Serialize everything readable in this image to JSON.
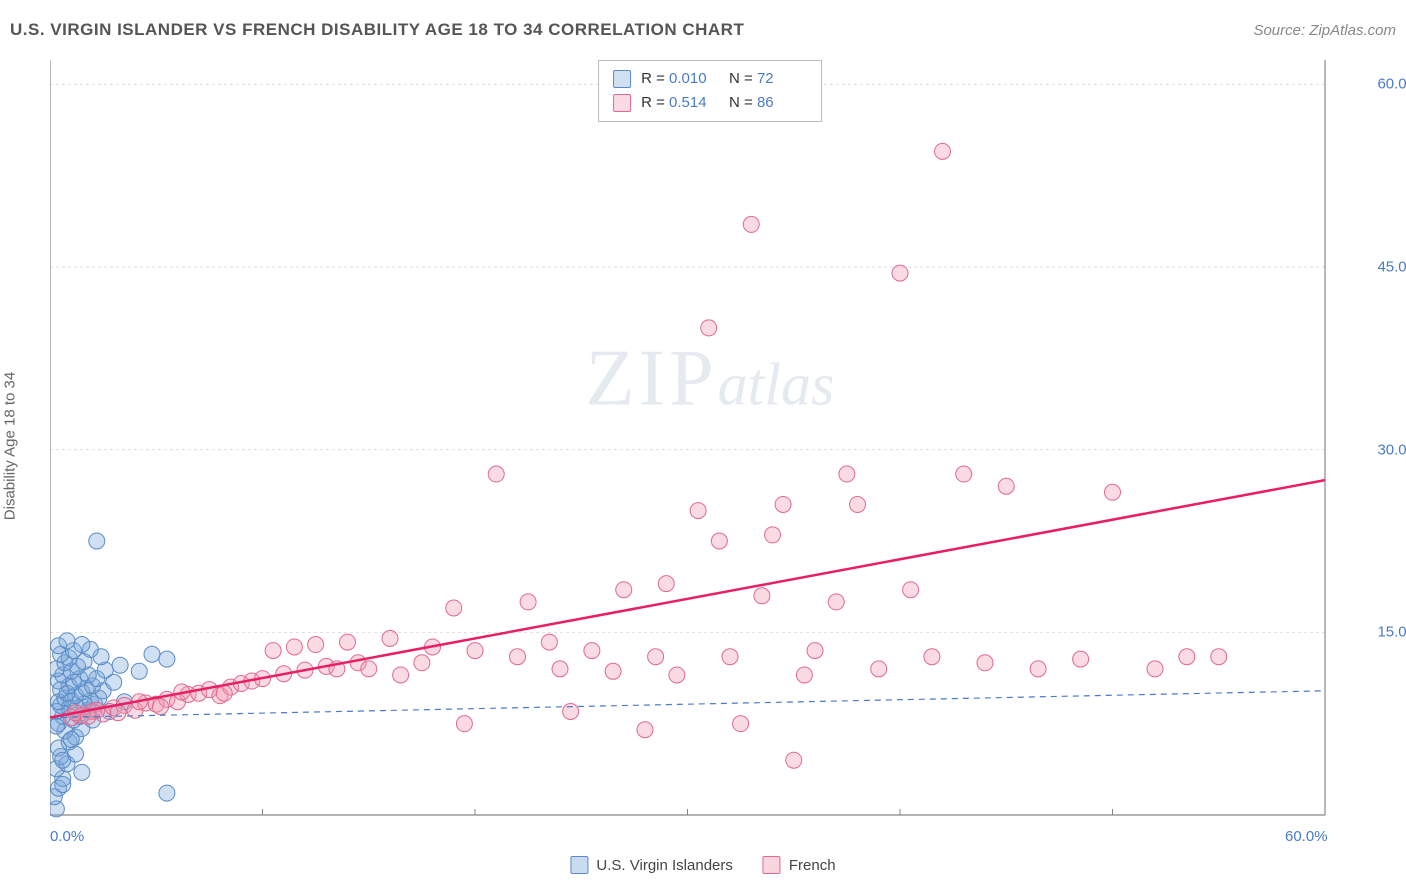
{
  "title": "U.S. VIRGIN ISLANDER VS FRENCH DISABILITY AGE 18 TO 34 CORRELATION CHART",
  "source": "Source: ZipAtlas.com",
  "ylabel": "Disability Age 18 to 34",
  "watermark": {
    "zip": "ZIP",
    "atlas": "atlas"
  },
  "chart": {
    "type": "scatter",
    "background_color": "#ffffff",
    "grid_color": "#dddddd",
    "axis_color": "#888888",
    "xlim": [
      0,
      60
    ],
    "ylim": [
      0,
      62
    ],
    "xticks": [
      0,
      60
    ],
    "xtick_labels": [
      "0.0%",
      "60.0%"
    ],
    "yticks": [
      15,
      30,
      45,
      60
    ],
    "ytick_labels": [
      "15.0%",
      "30.0%",
      "45.0%",
      "60.0%"
    ],
    "xtick_minor": [
      10,
      20,
      30,
      40,
      50
    ],
    "series": [
      {
        "name": "U.S. Virgin Islanders",
        "color_fill": "rgba(120,165,220,0.35)",
        "color_stroke": "#5a8bc4",
        "marker_radius": 8,
        "trend": {
          "style": "dashed",
          "color": "#4a7bc8",
          "width": 1.2,
          "y_start": 8.0,
          "y_end": 10.2
        },
        "points": [
          [
            0.3,
            0.5
          ],
          [
            0.2,
            1.5
          ],
          [
            0.4,
            2.2
          ],
          [
            0.6,
            3.0
          ],
          [
            0.3,
            3.8
          ],
          [
            0.8,
            4.2
          ],
          [
            0.5,
            4.8
          ],
          [
            0.4,
            5.5
          ],
          [
            0.9,
            6.0
          ],
          [
            1.2,
            6.4
          ],
          [
            0.7,
            6.9
          ],
          [
            1.5,
            7.1
          ],
          [
            0.4,
            7.5
          ],
          [
            1.1,
            7.8
          ],
          [
            0.6,
            8.1
          ],
          [
            1.4,
            8.1
          ],
          [
            0.3,
            8.5
          ],
          [
            1.8,
            8.6
          ],
          [
            0.9,
            8.8
          ],
          [
            1.3,
            8.8
          ],
          [
            0.5,
            9.0
          ],
          [
            1.6,
            9.1
          ],
          [
            2.1,
            9.1
          ],
          [
            0.4,
            9.3
          ],
          [
            1.0,
            9.4
          ],
          [
            1.9,
            9.4
          ],
          [
            0.7,
            9.6
          ],
          [
            2.3,
            9.6
          ],
          [
            0.3,
            7.3
          ],
          [
            1.2,
            9.8
          ],
          [
            0.8,
            10.0
          ],
          [
            1.5,
            10.1
          ],
          [
            2.5,
            10.2
          ],
          [
            0.5,
            10.3
          ],
          [
            1.7,
            10.4
          ],
          [
            0.9,
            10.6
          ],
          [
            2.0,
            10.6
          ],
          [
            1.1,
            10.9
          ],
          [
            3.0,
            10.9
          ],
          [
            0.4,
            11.0
          ],
          [
            1.4,
            11.2
          ],
          [
            2.2,
            11.2
          ],
          [
            0.6,
            11.5
          ],
          [
            1.8,
            11.5
          ],
          [
            1.0,
            11.8
          ],
          [
            2.6,
            11.9
          ],
          [
            0.3,
            12.0
          ],
          [
            1.3,
            12.2
          ],
          [
            3.3,
            12.3
          ],
          [
            0.7,
            12.5
          ],
          [
            1.6,
            12.6
          ],
          [
            0.9,
            12.9
          ],
          [
            2.4,
            13.0
          ],
          [
            0.5,
            13.2
          ],
          [
            1.1,
            13.5
          ],
          [
            1.9,
            13.6
          ],
          [
            0.4,
            13.9
          ],
          [
            1.5,
            14.0
          ],
          [
            0.8,
            14.3
          ],
          [
            4.8,
            13.2
          ],
          [
            1.2,
            5.0
          ],
          [
            0.6,
            4.5
          ],
          [
            1.0,
            6.2
          ],
          [
            2.0,
            7.8
          ],
          [
            2.8,
            8.5
          ],
          [
            3.5,
            9.3
          ],
          [
            4.2,
            11.8
          ],
          [
            5.5,
            12.8
          ],
          [
            2.2,
            22.5
          ],
          [
            5.5,
            1.8
          ],
          [
            1.5,
            3.5
          ],
          [
            0.6,
            2.5
          ]
        ]
      },
      {
        "name": "French",
        "color_fill": "rgba(240,150,175,0.35)",
        "color_stroke": "#e06a8e",
        "marker_radius": 8,
        "trend": {
          "style": "solid",
          "color": "#e91e63",
          "width": 2.5,
          "y_start": 8.0,
          "y_end": 27.5
        },
        "points": [
          [
            1.5,
            8.2
          ],
          [
            2.0,
            8.5
          ],
          [
            2.5,
            8.3
          ],
          [
            3.0,
            8.8
          ],
          [
            3.5,
            9.0
          ],
          [
            4.0,
            8.6
          ],
          [
            4.5,
            9.2
          ],
          [
            5.0,
            9.1
          ],
          [
            5.5,
            9.5
          ],
          [
            6.0,
            9.3
          ],
          [
            6.5,
            9.9
          ],
          [
            7.0,
            10.0
          ],
          [
            7.5,
            10.3
          ],
          [
            8.0,
            9.8
          ],
          [
            8.5,
            10.5
          ],
          [
            9.0,
            10.8
          ],
          [
            9.5,
            11.0
          ],
          [
            10.0,
            11.2
          ],
          [
            10.5,
            13.5
          ],
          [
            11.0,
            11.6
          ],
          [
            11.5,
            13.8
          ],
          [
            12.0,
            11.9
          ],
          [
            12.5,
            14.0
          ],
          [
            13.0,
            12.2
          ],
          [
            13.5,
            12.0
          ],
          [
            14.0,
            14.2
          ],
          [
            14.5,
            12.5
          ],
          [
            15.0,
            12.0
          ],
          [
            16.0,
            14.5
          ],
          [
            16.5,
            11.5
          ],
          [
            17.5,
            12.5
          ],
          [
            18.0,
            13.8
          ],
          [
            19.0,
            17.0
          ],
          [
            19.5,
            7.5
          ],
          [
            20.0,
            13.5
          ],
          [
            21.0,
            28.0
          ],
          [
            22.0,
            13.0
          ],
          [
            22.5,
            17.5
          ],
          [
            23.5,
            14.2
          ],
          [
            24.0,
            12.0
          ],
          [
            24.5,
            8.5
          ],
          [
            25.5,
            13.5
          ],
          [
            26.5,
            11.8
          ],
          [
            27.0,
            18.5
          ],
          [
            28.0,
            7.0
          ],
          [
            28.5,
            13.0
          ],
          [
            29.0,
            19.0
          ],
          [
            29.5,
            11.5
          ],
          [
            30.5,
            25.0
          ],
          [
            31.0,
            40.0
          ],
          [
            31.5,
            22.5
          ],
          [
            32.0,
            13.0
          ],
          [
            32.5,
            7.5
          ],
          [
            33.0,
            48.5
          ],
          [
            33.5,
            18.0
          ],
          [
            34.0,
            23.0
          ],
          [
            34.5,
            25.5
          ],
          [
            35.0,
            4.5
          ],
          [
            35.5,
            11.5
          ],
          [
            36.0,
            13.5
          ],
          [
            37.0,
            17.5
          ],
          [
            37.5,
            28.0
          ],
          [
            38.0,
            25.5
          ],
          [
            39.0,
            12.0
          ],
          [
            40.0,
            44.5
          ],
          [
            40.5,
            18.5
          ],
          [
            41.5,
            13.0
          ],
          [
            42.0,
            54.5
          ],
          [
            43.0,
            28.0
          ],
          [
            44.0,
            12.5
          ],
          [
            45.0,
            27.0
          ],
          [
            46.5,
            12.0
          ],
          [
            48.5,
            12.8
          ],
          [
            50.0,
            26.5
          ],
          [
            52.0,
            12.0
          ],
          [
            53.5,
            13.0
          ],
          [
            55.0,
            13.0
          ],
          [
            1.0,
            8.0
          ],
          [
            1.2,
            8.4
          ],
          [
            1.8,
            8.1
          ],
          [
            2.2,
            8.6
          ],
          [
            3.2,
            8.4
          ],
          [
            4.2,
            9.3
          ],
          [
            5.2,
            8.9
          ],
          [
            6.2,
            10.1
          ],
          [
            8.2,
            10.0
          ]
        ]
      }
    ],
    "top_legend": [
      {
        "r": "0.010",
        "n": "72"
      },
      {
        "r": "0.514",
        "n": "86"
      }
    ],
    "bottom_legend": [
      {
        "label": "U.S. Virgin Islanders",
        "fill": "rgba(120,165,220,0.4)",
        "stroke": "#5a8bc4"
      },
      {
        "label": "French",
        "fill": "rgba(240,150,175,0.4)",
        "stroke": "#e06a8e"
      }
    ]
  }
}
